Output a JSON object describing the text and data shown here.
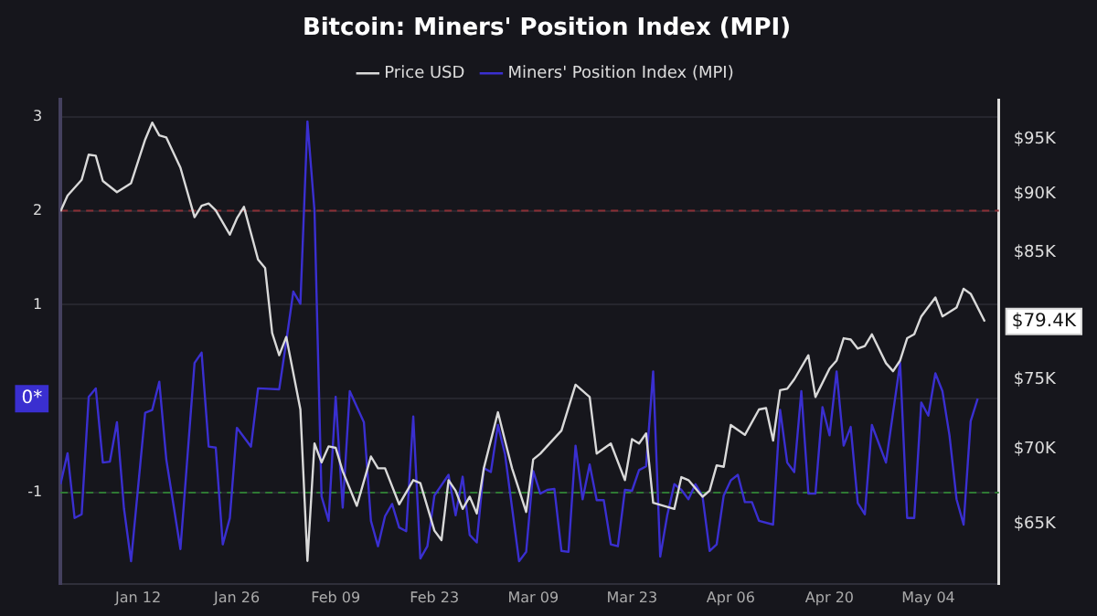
{
  "chart_data": {
    "type": "line",
    "title": "Bitcoin: Miners' Position Index (MPI)",
    "legend": "top",
    "grid": "y",
    "marker": "none",
    "line_style": "solid",
    "log": "y2",
    "xlim": [
      "--01-01",
      "--05-14"
    ],
    "xticks": [
      {
        "value": "--01-12",
        "label": "Jan 12"
      },
      {
        "value": "--01-26",
        "label": "Jan 26"
      },
      {
        "value": "--02-09",
        "label": "Feb 09"
      },
      {
        "value": "--02-23",
        "label": "Feb 23"
      },
      {
        "value": "--03-09",
        "label": "Mar 09"
      },
      {
        "value": "--03-23",
        "label": "Mar 23"
      },
      {
        "value": "--04-06",
        "label": "Apr 06"
      },
      {
        "value": "--04-20",
        "label": "Apr 20"
      },
      {
        "value": "--05-04",
        "label": "May 04"
      }
    ],
    "ylim": [
      -1.97,
      3.18
    ],
    "yticks": [
      -1,
      {
        "value": 0,
        "label": "0*"
      },
      1,
      2,
      3
    ],
    "y2lim": [
      61300,
      98800
    ],
    "y2ticks": [
      {
        "value": 65000,
        "label": "$65K"
      },
      {
        "value": 70000,
        "label": "$70K"
      },
      {
        "value": 75000,
        "label": "$75K"
      },
      {
        "value": 79400,
        "label": "$79.4K"
      },
      {
        "value": 85000,
        "label": "$85K"
      },
      {
        "value": 90000,
        "label": "$90K"
      },
      {
        "value": 95000,
        "label": "$95K"
      }
    ],
    "ref_lines": [
      {
        "axis": "y",
        "value": 2,
        "color": "#8b2f35",
        "line_style": "dashed"
      },
      {
        "axis": "y",
        "value": -1,
        "color": "#2f7a33",
        "line_style": "dashed"
      }
    ],
    "series": [
      {
        "name": "Price USD",
        "color": "#d9d9d9",
        "axis": "y2",
        "x": [
          "--01-01",
          "--01-02",
          "--01-04",
          "--01-05",
          "--01-06",
          "--01-07",
          "--01-09",
          "--01-11",
          "--01-13",
          "--01-14",
          "--01-15",
          "--01-16",
          "--01-18",
          "--01-20",
          "--01-21",
          "--01-22",
          "--01-23",
          "--01-25",
          "--01-26",
          "--01-27",
          "--01-29",
          "--01-30",
          "--01-31",
          "--02-01",
          "--02-02",
          "--02-04",
          "--02-05",
          "--02-06",
          "--02-07",
          "--02-08",
          "--02-09",
          "--02-10",
          "--02-12",
          "--02-14",
          "--02-15",
          "--02-16",
          "--02-18",
          "--02-20",
          "--02-21",
          "--02-23",
          "--02-24",
          "--02-25",
          "--02-26",
          "--02-27",
          "--02-28",
          "--03-01",
          "--03-02",
          "--03-04",
          "--03-05",
          "--03-06",
          "--03-08",
          "--03-09",
          "--03-10",
          "--03-13",
          "--03-15",
          "--03-17",
          "--03-18",
          "--03-20",
          "--03-22",
          "--03-23",
          "--03-24",
          "--03-25",
          "--03-26",
          "--03-29",
          "--03-30",
          "--03-31",
          "--04-02",
          "--04-03",
          "--04-04",
          "--04-05",
          "--04-06",
          "--04-08",
          "--04-10",
          "--04-11",
          "--04-12",
          "--04-13",
          "--04-14",
          "--04-15",
          "--04-17",
          "--04-18",
          "--04-20",
          "--04-21",
          "--04-22",
          "--04-23",
          "--04-24",
          "--04-25",
          "--04-26",
          "--04-28",
          "--04-29",
          "--04-30",
          "--05-01",
          "--05-02",
          "--05-03",
          "--05-05",
          "--05-06",
          "--05-08",
          "--05-09",
          "--05-10",
          "--05-12"
        ],
        "values": [
          88500,
          89900,
          91300,
          93600,
          93500,
          91200,
          90200,
          91000,
          95000,
          96600,
          95400,
          95200,
          92400,
          88000,
          89000,
          89200,
          88600,
          86500,
          87900,
          88900,
          84400,
          83700,
          78500,
          76800,
          78200,
          72800,
          62700,
          70400,
          69100,
          70200,
          70100,
          68500,
          66200,
          69500,
          68700,
          68700,
          66300,
          67900,
          67700,
          64600,
          64000,
          67900,
          67200,
          66000,
          66800,
          65700,
          68700,
          72600,
          70600,
          68700,
          65800,
          69300,
          69700,
          71300,
          74600,
          73700,
          69700,
          70400,
          67900,
          70700,
          70400,
          71100,
          66400,
          66000,
          68100,
          67900,
          66800,
          67200,
          68900,
          68800,
          71700,
          71000,
          72800,
          72900,
          70600,
          74200,
          74300,
          75000,
          76800,
          73700,
          75800,
          76400,
          78100,
          78000,
          77300,
          77500,
          78400,
          76200,
          75600,
          76400,
          78100,
          78400,
          79800,
          81300,
          79800,
          80500,
          82000,
          81600,
          79400
        ]
      },
      {
        "name": "Miners' Position Index (MPI)",
        "color": "#3a2fd0",
        "axis": "y",
        "x": [
          "--01-01",
          "--01-02",
          "--01-03",
          "--01-04",
          "--01-05",
          "--01-06",
          "--01-07",
          "--01-08",
          "--01-09",
          "--01-10",
          "--01-11",
          "--01-13",
          "--01-14",
          "--01-15",
          "--01-16",
          "--01-18",
          "--01-20",
          "--01-21",
          "--01-22",
          "--01-23",
          "--01-24",
          "--01-25",
          "--01-26",
          "--01-28",
          "--01-29",
          "--02-01",
          "--02-02",
          "--02-03",
          "--02-04",
          "--02-05",
          "--02-06",
          "--02-07",
          "--02-08",
          "--02-09",
          "--02-10",
          "--02-11",
          "--02-13",
          "--02-14",
          "--02-15",
          "--02-16",
          "--02-17",
          "--02-18",
          "--02-19",
          "--02-20",
          "--02-21",
          "--02-22",
          "--02-23",
          "--02-25",
          "--02-26",
          "--02-27",
          "--02-28",
          "--03-01",
          "--03-02",
          "--03-03",
          "--03-04",
          "--03-05",
          "--03-07",
          "--03-08",
          "--03-09",
          "--03-10",
          "--03-11",
          "--03-12",
          "--03-13",
          "--03-14",
          "--03-15",
          "--03-16",
          "--03-17",
          "--03-18",
          "--03-19",
          "--03-20",
          "--03-21",
          "--03-22",
          "--03-23",
          "--03-24",
          "--03-25",
          "--03-26",
          "--03-27",
          "--03-28",
          "--03-29",
          "--03-30",
          "--03-31",
          "--04-01",
          "--04-02",
          "--04-03",
          "--04-04",
          "--04-05",
          "--04-06",
          "--04-07",
          "--04-08",
          "--04-09",
          "--04-10",
          "--04-12",
          "--04-13",
          "--04-14",
          "--04-15",
          "--04-16",
          "--04-17",
          "--04-18",
          "--04-19",
          "--04-20",
          "--04-21",
          "--04-22",
          "--04-23",
          "--04-24",
          "--04-25",
          "--04-26",
          "--04-28",
          "--04-30",
          "--05-01",
          "--05-02",
          "--05-03",
          "--05-04",
          "--05-05",
          "--05-06",
          "--05-07",
          "--05-08",
          "--05-09",
          "--05-10",
          "--05-11"
        ],
        "values": [
          -0.91,
          -0.58,
          -1.27,
          -1.23,
          0.02,
          0.11,
          -0.68,
          -0.67,
          -0.25,
          -1.17,
          -1.73,
          -0.15,
          -0.12,
          0.18,
          -0.65,
          -1.6,
          0.38,
          0.49,
          -0.51,
          -0.52,
          -1.55,
          -1.27,
          -0.31,
          -0.51,
          0.11,
          0.1,
          0.61,
          1.14,
          1.01,
          2.95,
          2.0,
          -1.04,
          -1.3,
          0.02,
          -1.16,
          0.08,
          -0.25,
          -1.3,
          -1.57,
          -1.25,
          -1.12,
          -1.37,
          -1.41,
          -0.19,
          -1.7,
          -1.57,
          -1.03,
          -0.81,
          -1.24,
          -0.83,
          -1.45,
          -1.53,
          -0.74,
          -0.78,
          -0.28,
          -0.59,
          -1.73,
          -1.63,
          -0.77,
          -1.01,
          -0.97,
          -0.96,
          -1.62,
          -1.63,
          -0.5,
          -1.07,
          -0.7,
          -1.08,
          -1.08,
          -1.55,
          -1.57,
          -0.97,
          -0.98,
          -0.76,
          -0.72,
          0.29,
          -1.68,
          -1.24,
          -0.91,
          -0.97,
          -1.07,
          -0.91,
          -1.04,
          -1.62,
          -1.55,
          -1.03,
          -0.87,
          -0.81,
          -1.1,
          -1.1,
          -1.3,
          -1.34,
          -0.12,
          -0.68,
          -0.78,
          0.08,
          -1.01,
          -1.01,
          -0.09,
          -0.39,
          0.29,
          -0.5,
          -0.3,
          -1.11,
          -1.23,
          -0.28,
          -0.68,
          0.38,
          -1.27,
          -1.27,
          -0.04,
          -0.18,
          0.27,
          0.08,
          -0.39,
          -1.07,
          -1.34,
          -0.24,
          0
        ]
      }
    ]
  }
}
